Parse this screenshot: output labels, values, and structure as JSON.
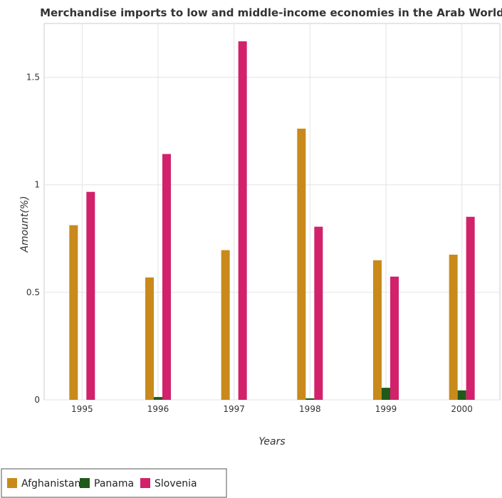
{
  "chart_data": {
    "type": "bar",
    "title": "Merchandise imports to low and middle-income economies in the Arab World",
    "xlabel": "Years",
    "ylabel": "Amount(%)",
    "categories": [
      "1995",
      "1996",
      "1997",
      "1998",
      "1999",
      "2000"
    ],
    "series": [
      {
        "name": "Afghanistan",
        "color": "#c98a1b",
        "values": [
          0.812,
          0.569,
          0.696,
          1.261,
          0.649,
          0.675
        ]
      },
      {
        "name": "Panama",
        "color": "#1f5a19",
        "values": [
          0.0,
          0.013,
          0.0,
          0.007,
          0.056,
          0.044
        ]
      },
      {
        "name": "Slovenia",
        "color": "#d1226b",
        "values": [
          0.967,
          1.143,
          1.667,
          0.805,
          0.573,
          0.851
        ]
      }
    ],
    "ylim": [
      0,
      1.75
    ],
    "yticks": [
      0,
      0.5,
      1,
      1.5
    ],
    "ytick_labels": [
      "0",
      "0.5",
      "1",
      "1.5"
    ],
    "grid": true,
    "legend_position": "bottom-left"
  }
}
